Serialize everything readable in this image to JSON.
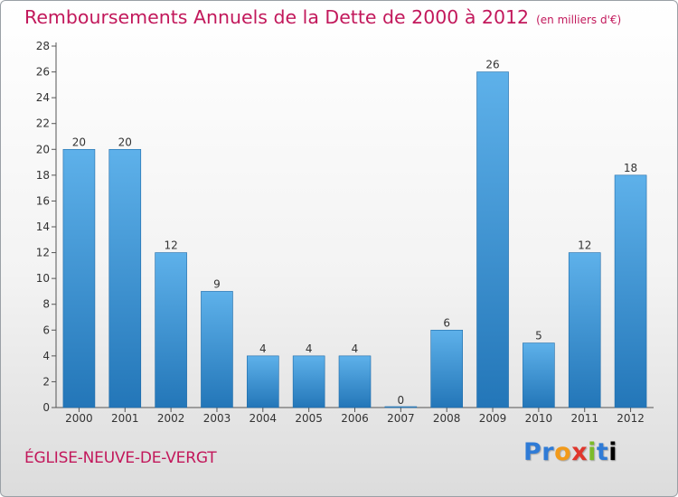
{
  "header": {
    "title": "Remboursements Annuels de la Dette de 2000 à 2012",
    "unit": "(en milliers d'€)"
  },
  "footer": {
    "commune": "ÉGLISE-NEUVE-DE-VERGT",
    "logo_letters": [
      "P",
      "r",
      "o",
      "x",
      "i",
      "t",
      "i"
    ]
  },
  "colors": {
    "title": "#c2185b",
    "bar_light": "#5eb1ea",
    "bar_dark": "#2376b8"
  },
  "chart_data": {
    "type": "bar",
    "categories": [
      "2000",
      "2001",
      "2002",
      "2003",
      "2004",
      "2005",
      "2006",
      "2007",
      "2008",
      "2009",
      "2010",
      "2011",
      "2012"
    ],
    "values": [
      20,
      20,
      12,
      9,
      4,
      4,
      4,
      0,
      6,
      26,
      5,
      12,
      18
    ],
    "ylim": [
      0,
      28
    ],
    "yticks": [
      0,
      2,
      4,
      6,
      8,
      10,
      12,
      14,
      16,
      18,
      20,
      22,
      24,
      26,
      28
    ],
    "grid": false
  }
}
